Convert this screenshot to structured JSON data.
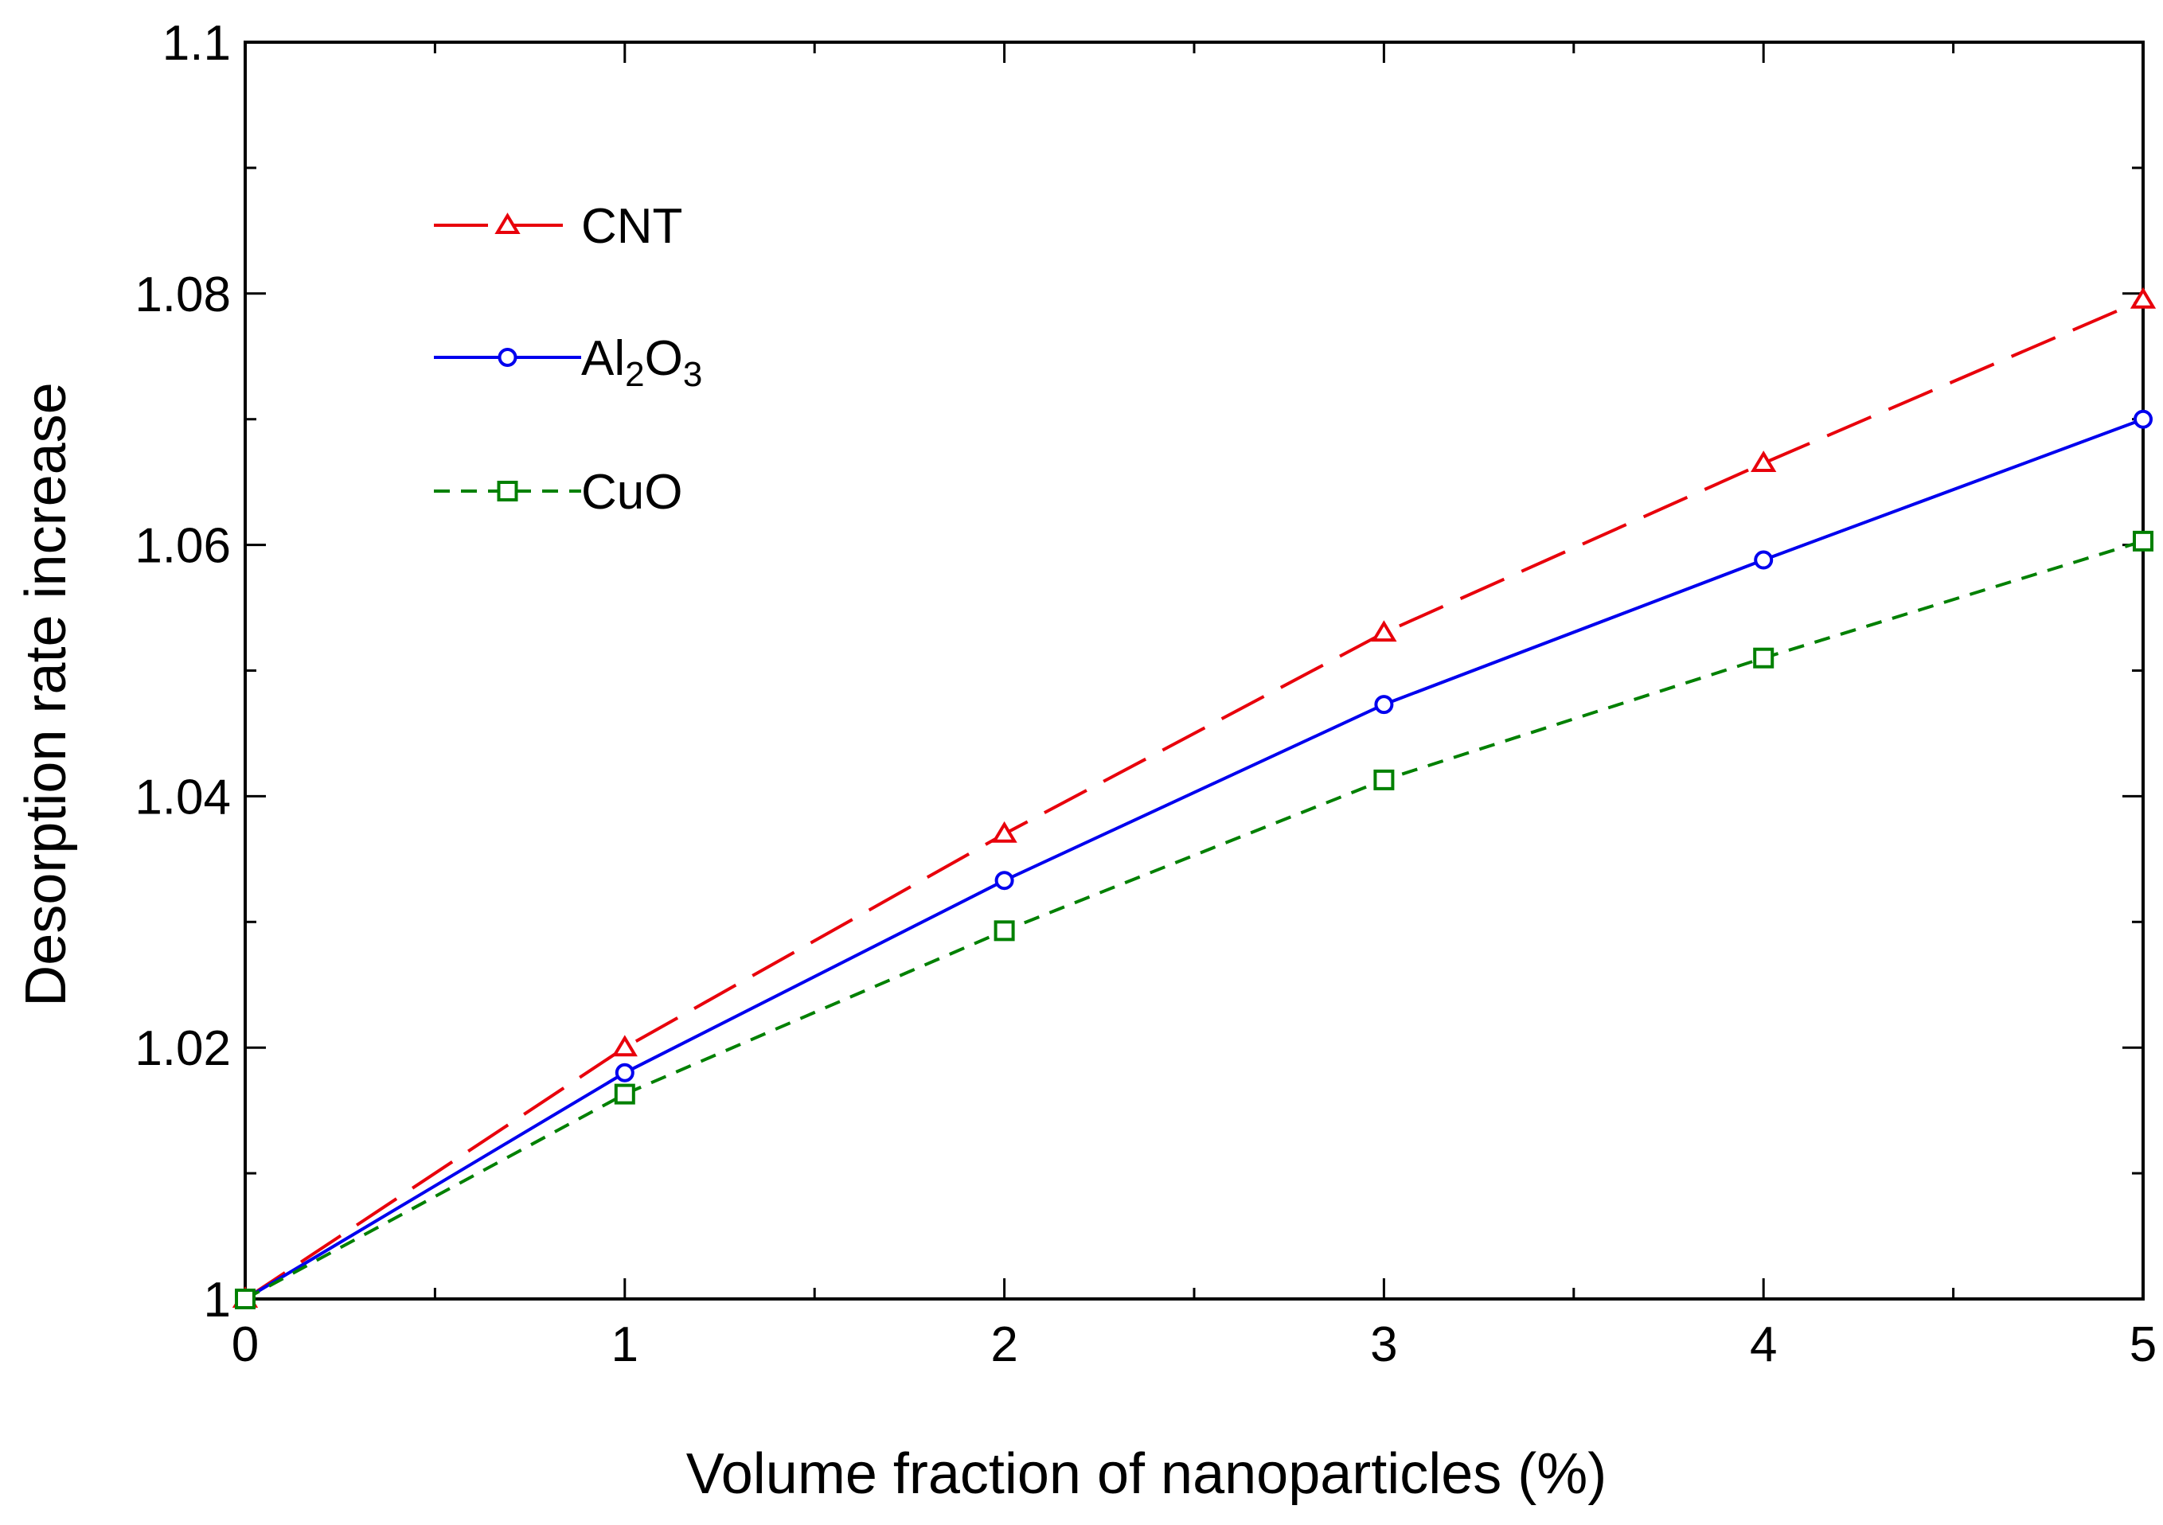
{
  "chart_data": {
    "type": "line",
    "title": "",
    "xlabel": "Volume fraction of nanoparticles (%)",
    "ylabel": "Desorption rate increase",
    "xlim": [
      0,
      5
    ],
    "ylim": [
      1,
      1.1
    ],
    "x_ticks": [
      "0",
      "1",
      "2",
      "3",
      "4",
      "5"
    ],
    "y_ticks": [
      "1",
      "1.02",
      "1.04",
      "1.06",
      "1.08",
      "1.1"
    ],
    "x": [
      0,
      1,
      2,
      3,
      4,
      5
    ],
    "grid": false,
    "legend_position": "upper-left",
    "series": [
      {
        "name": "CNT",
        "label": "CNT",
        "color": "#e8000b",
        "marker": "triangle",
        "line_style": "long-dash",
        "values": [
          1.0,
          1.02,
          1.037,
          1.053,
          1.0665,
          1.0795
        ]
      },
      {
        "name": "Al2O3",
        "label_main": "Al",
        "label_sub1": "2",
        "label_mid": "O",
        "label_sub2": "3",
        "color": "#0000ee",
        "marker": "circle",
        "line_style": "solid",
        "values": [
          1.0,
          1.018,
          1.0333,
          1.0473,
          1.0588,
          1.07
        ]
      },
      {
        "name": "CuO",
        "label": "CuO",
        "color": "#008000",
        "marker": "square",
        "line_style": "short-dash",
        "values": [
          1.0,
          1.0163,
          1.0293,
          1.0413,
          1.051,
          1.0603
        ]
      }
    ]
  }
}
